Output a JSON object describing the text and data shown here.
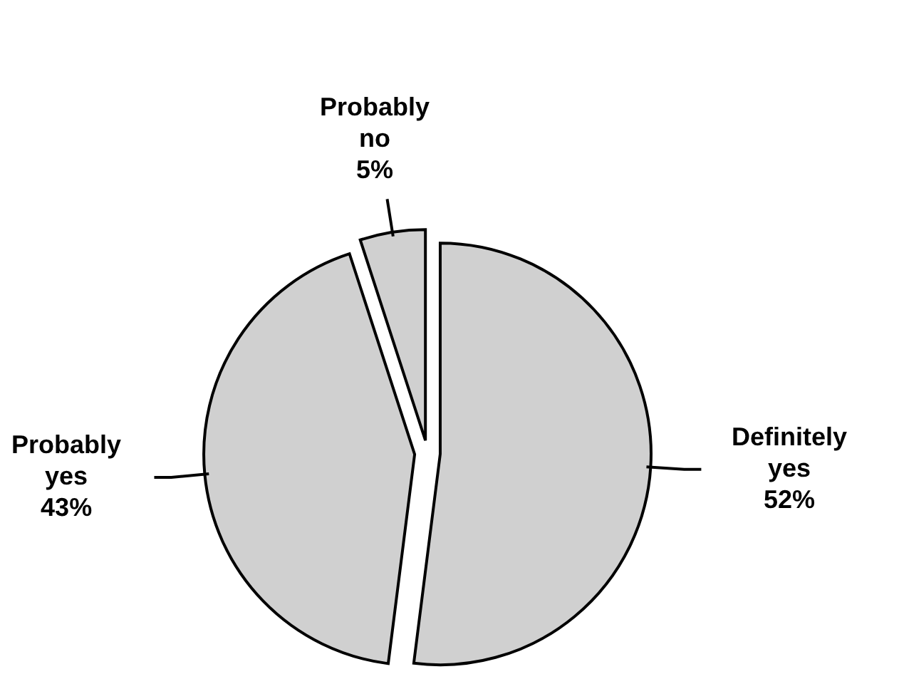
{
  "chart_data": {
    "type": "pie",
    "categories": [
      "Definitely yes",
      "Probably yes",
      "Probably no"
    ],
    "values": [
      52,
      43,
      5
    ],
    "colors": [
      "#d0d0d0",
      "#d0d0d0",
      "#d0d0d0"
    ],
    "value_labels": [
      "52%",
      "43%",
      "5%"
    ]
  }
}
